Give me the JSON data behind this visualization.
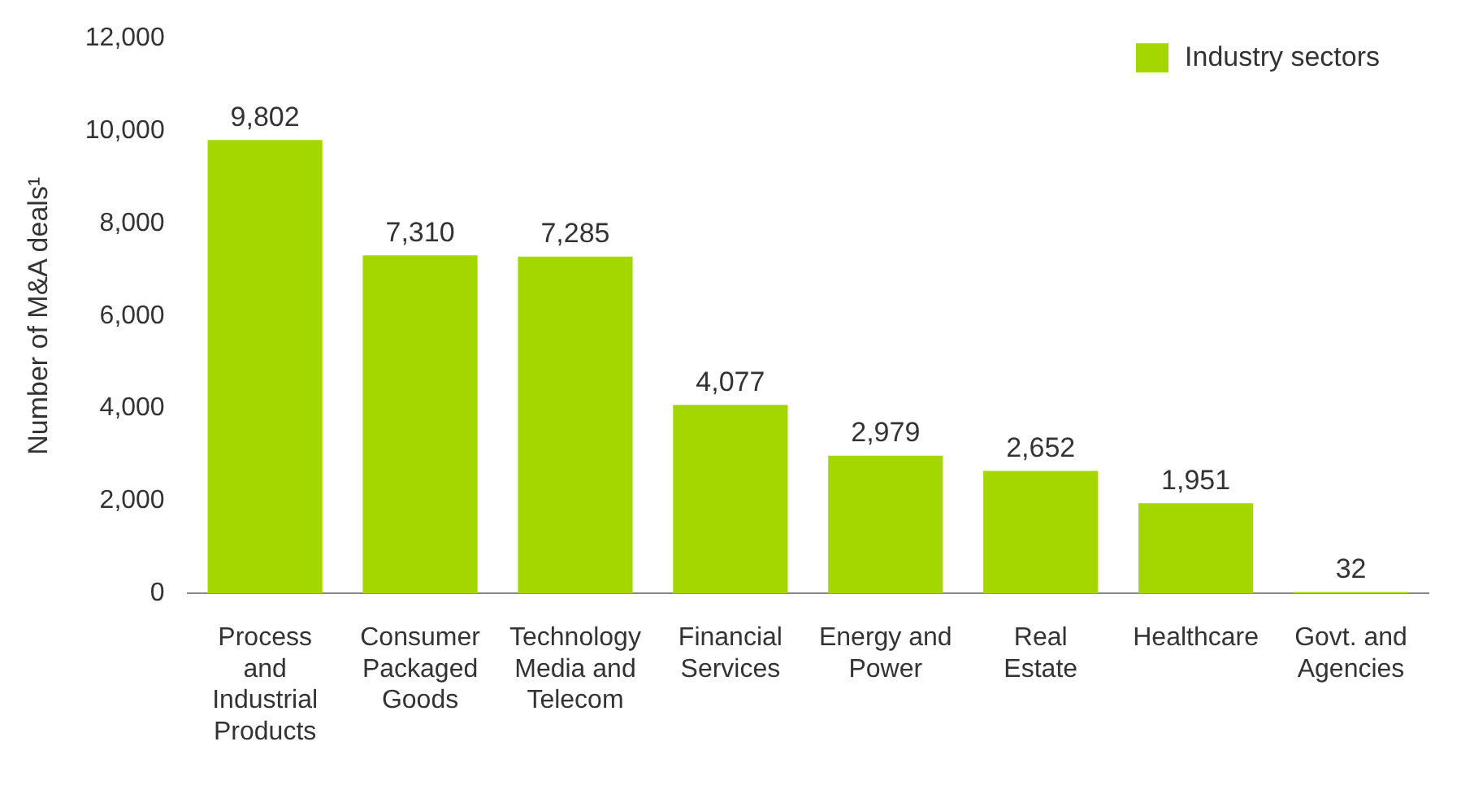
{
  "chart_data": {
    "type": "bar",
    "ylabel": "Number of M&A deals¹",
    "categories": [
      "Process and Industrial Products",
      "Consumer Packaged Goods",
      "Technology Media and Telecom",
      "Financial Services",
      "Energy and Power",
      "Real Estate",
      "Healthcare",
      "Govt. and Agencies"
    ],
    "series": [
      {
        "name": "Industry sectors",
        "color": "#a4d600",
        "values": [
          9802,
          7310,
          7285,
          4077,
          2979,
          2652,
          1951,
          32
        ],
        "value_labels": [
          "9,802",
          "7,310",
          "7,285",
          "4,077",
          "2,979",
          "2,652",
          "1,951",
          "32"
        ]
      }
    ],
    "ylim": [
      0,
      12000
    ],
    "yticks": [
      0,
      {
        "value": 2000,
        "label": "2,000"
      },
      {
        "value": 4000,
        "label": "4,000"
      },
      {
        "value": 6000,
        "label": "6,000"
      },
      {
        "value": 8000,
        "label": "8,000"
      },
      {
        "value": 10000,
        "label": "10,000"
      },
      {
        "value": 12000,
        "label": "12,000"
      }
    ],
    "grid": false,
    "legend": "top right"
  }
}
